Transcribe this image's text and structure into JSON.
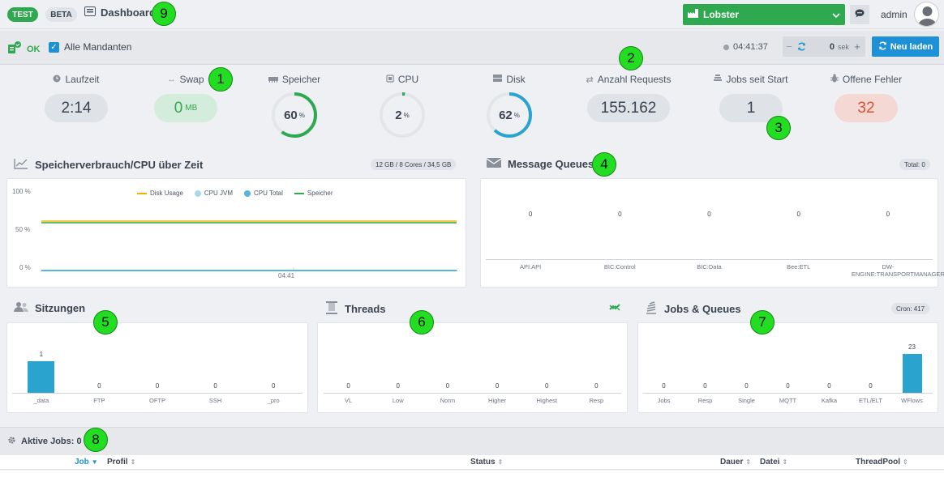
{
  "topbar": {
    "env_badge": "TEST",
    "beta_badge": "BETA",
    "title": "Dashboard",
    "tenant": "Lobster",
    "username": "admin"
  },
  "statusbar": {
    "status": "OK",
    "all_tenants_label": "Alle Mandanten",
    "all_tenants_checked": true,
    "time": "04:41:37",
    "refresh_value": "0",
    "refresh_unit": "sek",
    "reload_label": "Neu laden"
  },
  "metrics": [
    {
      "label": "Laufzeit",
      "value": "2:14",
      "icon": "clock-icon"
    },
    {
      "label": "Swap",
      "value": "0",
      "unit": "MB",
      "icon": "swap-icon"
    },
    {
      "label": "Speicher",
      "value": "60",
      "unit": "%",
      "percent": 60,
      "color": "#2ea94f",
      "icon": "memory-icon"
    },
    {
      "label": "CPU",
      "value": "2",
      "unit": "%",
      "percent": 2,
      "color": "#2ea94f",
      "icon": "cpu-icon"
    },
    {
      "label": "Disk",
      "value": "62",
      "unit": "%",
      "percent": 62,
      "color": "#2ba3cf",
      "icon": "disk-icon"
    },
    {
      "label": "Anzahl Requests",
      "value": "155.162",
      "icon": "requests-icon"
    },
    {
      "label": "Jobs seit Start",
      "value": "1",
      "icon": "jobs-icon"
    },
    {
      "label": "Offene Fehler",
      "value": "32",
      "icon": "bug-icon"
    }
  ],
  "memory_chart": {
    "title": "Speicherverbrauch/CPU über Zeit",
    "badge": "12 GB / 8 Cores / 34,5 GB",
    "y_ticks": [
      "100 %",
      "50 %",
      "0 %"
    ],
    "x_tick": "04:41",
    "legend": [
      {
        "name": "Disk Usage",
        "color": "#f0b400",
        "style": "line"
      },
      {
        "name": "CPU JVM",
        "color": "#a9d8ec",
        "style": "dot"
      },
      {
        "name": "CPU Total",
        "color": "#54b5de",
        "style": "dot"
      },
      {
        "name": "Speicher",
        "color": "#2ea94f",
        "style": "line"
      }
    ],
    "series": [
      {
        "name": "Disk Usage",
        "value_percent": 62
      },
      {
        "name": "Speicher",
        "value_percent": 60
      },
      {
        "name": "CPU JVM",
        "value_percent": 0
      },
      {
        "name": "CPU Total",
        "value_percent": 1
      }
    ]
  },
  "message_queues": {
    "title": "Message Queues",
    "badge": "Total: 0",
    "categories": [
      "API:API",
      "BIC:Control",
      "BIC:Data",
      "Bee:ETL",
      "DW-ENGINE:TRANSPORTMANAGER"
    ],
    "values": [
      0,
      0,
      0,
      0,
      0
    ]
  },
  "sessions": {
    "title": "Sitzungen",
    "categories": [
      "_data",
      "FTP",
      "OFTP",
      "SSH",
      "_pro"
    ],
    "values": [
      1,
      0,
      0,
      0,
      0
    ]
  },
  "threads": {
    "title": "Threads",
    "categories": [
      "VL",
      "Low",
      "Norm",
      "Higher",
      "Highest",
      "Resp"
    ],
    "values": [
      0,
      0,
      0,
      0,
      0,
      0
    ]
  },
  "jobs_queues": {
    "title": "Jobs & Queues",
    "badge": "Cron: 417",
    "categories": [
      "Jobs",
      "Resp",
      "Single",
      "MQTT",
      "Kafka",
      "ETL/ELT",
      "WFlows"
    ],
    "values": [
      0,
      0,
      0,
      0,
      0,
      0,
      23
    ]
  },
  "active_jobs": {
    "title": "Aktive Jobs: 0",
    "columns": [
      "Job",
      "Profil",
      "Status",
      "Dauer",
      "Datei",
      "ThreadPool"
    ]
  },
  "markers": [
    "1",
    "2",
    "3",
    "4",
    "5",
    "6",
    "7",
    "8",
    "9"
  ],
  "chart_data": [
    {
      "type": "line",
      "title": "Speicherverbrauch/CPU über Zeit",
      "x": [
        "04:41"
      ],
      "ylim": [
        0,
        100
      ],
      "series": [
        {
          "name": "Disk Usage",
          "values": [
            62
          ]
        },
        {
          "name": "CPU JVM",
          "values": [
            0
          ]
        },
        {
          "name": "CPU Total",
          "values": [
            1
          ]
        },
        {
          "name": "Speicher",
          "values": [
            60
          ]
        }
      ]
    },
    {
      "type": "bar",
      "title": "Message Queues",
      "categories": [
        "API:API",
        "BIC:Control",
        "BIC:Data",
        "Bee:ETL",
        "DW-ENGINE:TRANSPORTMANAGER"
      ],
      "values": [
        0,
        0,
        0,
        0,
        0
      ]
    },
    {
      "type": "bar",
      "title": "Sitzungen",
      "categories": [
        "_data",
        "FTP",
        "OFTP",
        "SSH",
        "_pro"
      ],
      "values": [
        1,
        0,
        0,
        0,
        0
      ]
    },
    {
      "type": "bar",
      "title": "Threads",
      "categories": [
        "VL",
        "Low",
        "Norm",
        "Higher",
        "Highest",
        "Resp"
      ],
      "values": [
        0,
        0,
        0,
        0,
        0,
        0
      ]
    },
    {
      "type": "bar",
      "title": "Jobs & Queues",
      "categories": [
        "Jobs",
        "Resp",
        "Single",
        "MQTT",
        "Kafka",
        "ETL/ELT",
        "WFlows"
      ],
      "values": [
        0,
        0,
        0,
        0,
        0,
        0,
        23
      ]
    }
  ]
}
